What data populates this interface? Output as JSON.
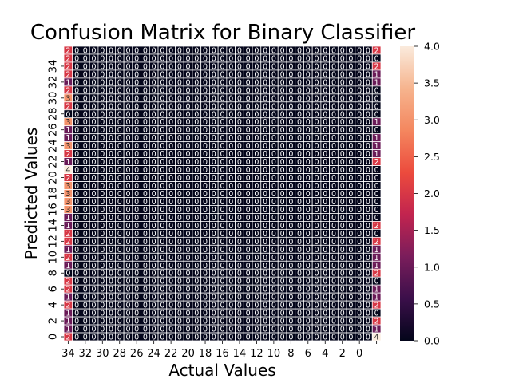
{
  "chart_data": {
    "type": "heatmap",
    "title": "Confusion Matrix for Binary Classifier",
    "xlabel": "Actual Values",
    "ylabel": "Predicted Values",
    "x_tick_labels": [
      "34",
      "32",
      "30",
      "28",
      "26",
      "24",
      "22",
      "20",
      "18",
      "16",
      "14",
      "12",
      "10",
      "8",
      "6",
      "4",
      "2",
      "0"
    ],
    "y_tick_labels": [
      "0",
      "2",
      "4",
      "6",
      "8",
      "10",
      "12",
      "14",
      "16",
      "18",
      "20",
      "22",
      "24",
      "26",
      "28",
      "30",
      "32",
      "34"
    ],
    "colorbar": {
      "range": [
        0.0,
        4.0
      ],
      "ticks": [
        "0.0",
        "0.5",
        "1.0",
        "1.5",
        "2.0",
        "2.5",
        "3.0",
        "3.5",
        "4.0"
      ]
    },
    "colormap": [
      "#03051a",
      "#3b0f4a",
      "#7a1d5b",
      "#c2244f",
      "#ec4b3d",
      "#f4875f",
      "#f6b48e",
      "#faebdd"
    ],
    "rows_top_to_bottom": [
      {
        "first": 2,
        "last": 2
      },
      {
        "first": 2,
        "last": 0
      },
      {
        "first": 2,
        "last": 2
      },
      {
        "first": 2,
        "last": 1
      },
      {
        "first": 1,
        "last": 1
      },
      {
        "first": 2,
        "last": 0
      },
      {
        "first": 3,
        "last": 0
      },
      {
        "first": 2,
        "last": 0
      },
      {
        "first": 0,
        "last": 0
      },
      {
        "first": 3,
        "last": 1
      },
      {
        "first": 1,
        "last": 0
      },
      {
        "first": 1,
        "last": 1
      },
      {
        "first": 3,
        "last": 1
      },
      {
        "first": 2,
        "last": 1
      },
      {
        "first": 1,
        "last": 2
      },
      {
        "first": 4,
        "last": 0
      },
      {
        "first": 2,
        "last": 0
      },
      {
        "first": 3,
        "last": 0
      },
      {
        "first": 3,
        "last": 0
      },
      {
        "first": 3,
        "last": 0
      },
      {
        "first": 3,
        "last": 0
      },
      {
        "first": 1,
        "last": 0
      },
      {
        "first": 1,
        "last": 2
      },
      {
        "first": 2,
        "last": 0
      },
      {
        "first": 2,
        "last": 2
      },
      {
        "first": 1,
        "last": 1
      },
      {
        "first": 2,
        "last": 1
      },
      {
        "first": 1,
        "last": 1
      },
      {
        "first": 0,
        "last": 2
      },
      {
        "first": 2,
        "last": 0
      },
      {
        "first": 2,
        "last": 1
      },
      {
        "first": 1,
        "last": 1
      },
      {
        "first": 2,
        "last": 2
      },
      {
        "first": 1,
        "last": 0
      },
      {
        "first": 1,
        "last": 2
      },
      {
        "first": 1,
        "last": 1
      },
      {
        "first": 2,
        "last": 4
      }
    ],
    "grid": true,
    "legend": "none"
  }
}
